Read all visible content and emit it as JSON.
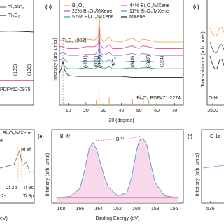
{
  "chart_data": [
    {
      "type": "line",
      "texts": [
        "Ti₃AlC₂",
        "Ti₃C₂",
        "(109)",
        "(108)",
        "PDF#52-0875"
      ],
      "colors": [
        "#555555",
        "#111111",
        "#c2187a",
        "#c2187a",
        "#8e24aa"
      ]
    },
    {
      "type": "line",
      "label": "(b)",
      "xlabel": "2θ (degree)",
      "ylabel": "Intensity (arb. units)",
      "xlim": [
        5,
        75
      ],
      "xticks": [
        10,
        20,
        30,
        40,
        50,
        60,
        70
      ],
      "ylim": [
        0,
        110
      ],
      "x": [
        5,
        6,
        7,
        8,
        10,
        15,
        20,
        25,
        27,
        27.5,
        28,
        30,
        33,
        35,
        40,
        46,
        50,
        52,
        55,
        60,
        65,
        70,
        75
      ],
      "series": [
        {
          "name": "Bi₂O₃",
          "color": "#f0a030",
          "values": [
            68,
            68,
            68,
            67,
            66,
            66,
            69,
            68,
            72,
            96,
            71,
            66,
            71,
            67,
            66,
            70,
            66,
            69,
            68,
            66,
            66,
            66,
            66
          ]
        },
        {
          "name": "44% Bi₂O₃/MXene",
          "color": "#d94f8a",
          "values": [
            61,
            61,
            61,
            60,
            59,
            59,
            61,
            61,
            64,
            82,
            63,
            59,
            63,
            59,
            59,
            62,
            59,
            62,
            61,
            59,
            59,
            59,
            59
          ]
        },
        {
          "name": "22% Bi₂O₃/MXene",
          "color": "#9b59b6",
          "values": [
            54,
            54,
            55,
            54,
            52,
            52,
            53,
            53,
            56,
            70,
            55,
            52,
            55,
            52,
            52,
            54,
            52,
            54,
            53,
            52,
            52,
            52,
            52
          ]
        },
        {
          "name": "11% Bi₂O₃/MXene",
          "color": "#4a90d9",
          "values": [
            47,
            47,
            49,
            47,
            45,
            45,
            46,
            46,
            48,
            60,
            48,
            45,
            47,
            45,
            45,
            46,
            45,
            46,
            46,
            45,
            45,
            45,
            45
          ]
        },
        {
          "name": "5.5% Bi₂O₃/MXene",
          "color": "#2ca089",
          "values": [
            40,
            41,
            44,
            40,
            38,
            38,
            39,
            38,
            40,
            50,
            40,
            38,
            40,
            38,
            38,
            39,
            38,
            39,
            39,
            38,
            38,
            38,
            38
          ]
        },
        {
          "name": "MXene",
          "color": "#222222",
          "values": [
            33,
            38,
            46,
            36,
            31,
            30,
            30,
            30,
            30,
            30,
            30,
            30,
            30,
            30,
            30,
            29,
            29,
            29,
            29,
            29,
            29,
            29,
            29
          ]
        }
      ],
      "annotations": [
        {
          "x": 7,
          "text": "Ti₃C₂ (002)",
          "color": "#333333"
        },
        {
          "x": 19.8,
          "text": "(-111)",
          "color": "#d62728"
        },
        {
          "x": 25.8,
          "text": "(021)",
          "color": "#d62728"
        },
        {
          "x": 28,
          "text": "(-112)",
          "color": "#d62728"
        },
        {
          "x": 36,
          "text": "TiO₂",
          "color": "#888888"
        },
        {
          "x": 46.3,
          "text": "(040)",
          "color": "#d62728"
        },
        {
          "x": 55.5,
          "text": "(-342)",
          "color": "#d62728"
        },
        {
          "x": 63,
          "text": "(124)",
          "color": "#d62728"
        }
      ],
      "reference": {
        "name": "Bi₂O₃ PDF#71-2274",
        "color": "#f0a030",
        "x": [
          19.8,
          25.8,
          27.4,
          33.1,
          46.3,
          52.4,
          55.5,
          63
        ],
        "values": [
          4,
          5,
          18,
          8,
          6,
          6,
          5,
          3
        ]
      }
    },
    {
      "type": "line",
      "label": "(c)",
      "ylabel": "Transmittance (arb. units)",
      "xlim": [
        3600,
        3300
      ],
      "xticks": [
        3500
      ],
      "texts": [
        "O-H"
      ]
    },
    {
      "type": "line",
      "texts": [
        "Bi₂O₃/MXene",
        "e",
        "Bi 4f",
        "Cl 2p",
        "2s",
        "Ti 3s",
        "Ti 3p",
        "eV)"
      ],
      "colors": [
        "#222222",
        "#222222",
        "#f0a030",
        "#222222",
        "#222222",
        "#222222",
        "#222222",
        "#222222"
      ]
    },
    {
      "type": "line",
      "label": "(e)",
      "title": "Bi 4f",
      "xlabel": "Binding Energy (eV)",
      "ylabel": "Intensity (arb. units)",
      "xlim": [
        169,
        155
      ],
      "xticks": [
        168,
        166,
        164,
        162,
        160,
        158,
        156
      ],
      "ylim": [
        0,
        100
      ],
      "x": [
        168.5,
        168,
        167,
        166,
        165.5,
        165,
        164.6,
        164.2,
        163.5,
        163,
        162,
        161,
        160.5,
        160,
        159.7,
        159.3,
        158.9,
        158.5,
        158,
        157,
        156,
        155.5
      ],
      "series": [
        {
          "color": "#6a8fd8",
          "fill": "#f6cfe3",
          "values": [
            8,
            8,
            9,
            20,
            45,
            75,
            82,
            72,
            40,
            22,
            10,
            14,
            35,
            70,
            85,
            88,
            80,
            55,
            28,
            10,
            8,
            8
          ]
        },
        {
          "color": "#e27fb8",
          "values": [
            7,
            7,
            7,
            7,
            7,
            7,
            7,
            7,
            7,
            7,
            7,
            7,
            7,
            7,
            7,
            7,
            7,
            7,
            7,
            7,
            7,
            7
          ]
        }
      ],
      "annotation": {
        "text": "Bi³⁺",
        "color": "#d9488f"
      }
    },
    {
      "type": "line",
      "label": "(f)",
      "title": "O 1s",
      "ylabel": "Intensity (arb. units)",
      "xlim": [
        538,
        533
      ],
      "xticks": [
        536
      ]
    }
  ]
}
